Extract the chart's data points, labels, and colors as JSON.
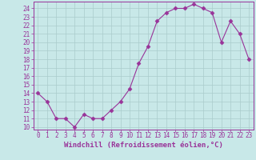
{
  "x": [
    0,
    1,
    2,
    3,
    4,
    5,
    6,
    7,
    8,
    9,
    10,
    11,
    12,
    13,
    14,
    15,
    16,
    17,
    18,
    19,
    20,
    21,
    22,
    23
  ],
  "y": [
    14,
    13,
    11,
    11,
    10,
    11.5,
    11,
    11,
    12,
    13,
    14.5,
    17.5,
    19.5,
    22.5,
    23.5,
    24,
    24,
    24.5,
    24,
    23.5,
    20,
    22.5,
    21,
    18
  ],
  "line_color": "#993399",
  "marker": "D",
  "bg_color": "#c8e8e8",
  "grid_color": "#aacccc",
  "xlabel": "Windchill (Refroidissement éolien,°C)",
  "xlabel_color": "#993399",
  "tick_color": "#993399",
  "ylim": [
    9.7,
    24.8
  ],
  "xlim": [
    -0.5,
    23.5
  ],
  "yticks": [
    10,
    11,
    12,
    13,
    14,
    15,
    16,
    17,
    18,
    19,
    20,
    21,
    22,
    23,
    24
  ],
  "xticks": [
    0,
    1,
    2,
    3,
    4,
    5,
    6,
    7,
    8,
    9,
    10,
    11,
    12,
    13,
    14,
    15,
    16,
    17,
    18,
    19,
    20,
    21,
    22,
    23
  ],
  "font_size": 5.5,
  "label_font_size": 6.5,
  "marker_size": 2.5,
  "line_width": 0.8
}
